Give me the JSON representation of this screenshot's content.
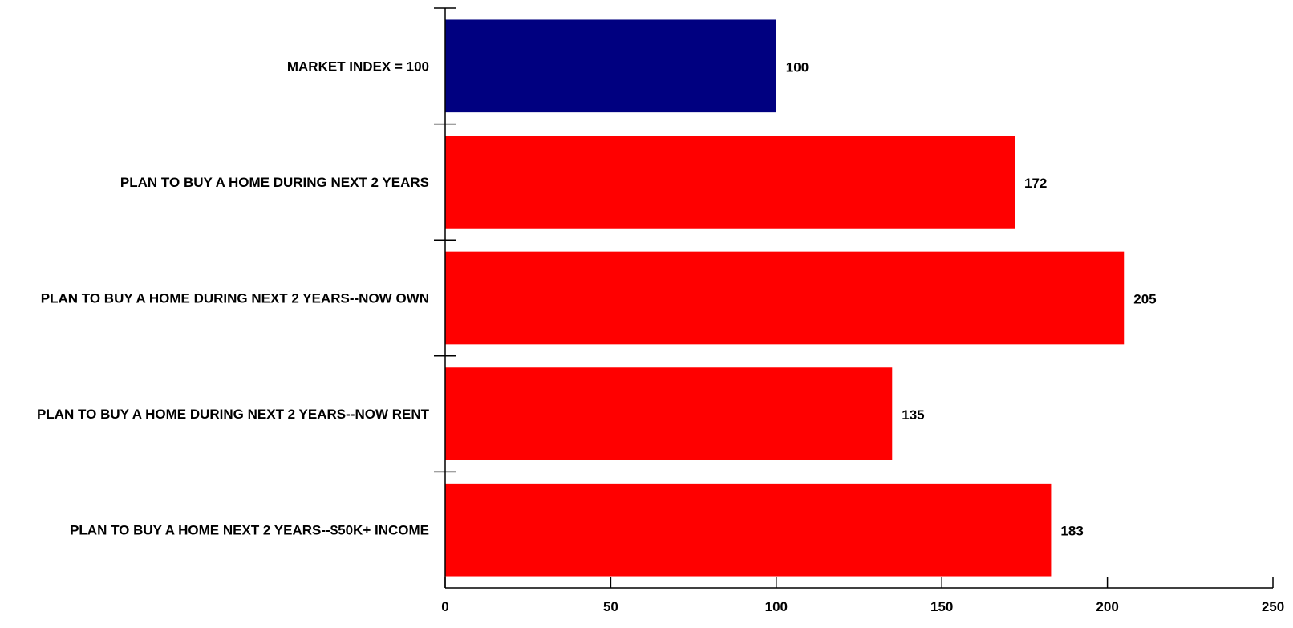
{
  "chart_data": {
    "type": "bar",
    "orientation": "horizontal",
    "title": "",
    "xlabel": "",
    "ylabel": "",
    "xlim": [
      0,
      250
    ],
    "x_ticks": [
      0,
      50,
      100,
      150,
      200,
      250
    ],
    "x_tick_labels": [
      "0",
      "50",
      "100",
      "150",
      "200",
      "250"
    ],
    "grid": false,
    "legend": "none",
    "categories": [
      "MARKET INDEX = 100",
      "PLAN TO BUY A HOME DURING NEXT 2 YEARS",
      "PLAN TO BUY A HOME DURING NEXT 2 YEARS--NOW OWN",
      "PLAN TO BUY A HOME DURING NEXT 2 YEARS--NOW RENT",
      "PLAN TO BUY A HOME NEXT 2 YEARS--$50K+ INCOME"
    ],
    "values": [
      100,
      172,
      205,
      135,
      183
    ],
    "value_labels": [
      "100",
      "172",
      "205",
      "135",
      "183"
    ],
    "bar_colors": [
      "#000080",
      "#ff0000",
      "#ff0000",
      "#ff0000",
      "#ff0000"
    ]
  }
}
